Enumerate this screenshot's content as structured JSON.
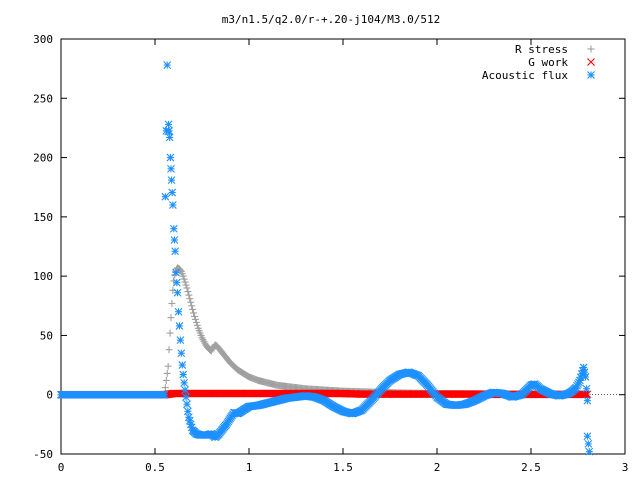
{
  "chart_data": {
    "type": "scatter",
    "title": "m3/n1.5/q2.0/r-+.20-j104/M3.0/512",
    "xlim": [
      0,
      3
    ],
    "ylim": [
      -50,
      300
    ],
    "x_ticks": [
      0,
      0.5,
      1,
      1.5,
      2,
      2.5,
      3
    ],
    "x_tick_labels": [
      "0",
      "0.5",
      "1",
      "1.5",
      "2",
      "2.5",
      "3"
    ],
    "y_ticks": [
      -50,
      0,
      50,
      100,
      150,
      200,
      250,
      300
    ],
    "y_tick_labels": [
      "-50",
      "0",
      "50",
      "100",
      "150",
      "200",
      "250",
      "300"
    ],
    "legend_position": "top-right",
    "grid": false,
    "series": [
      {
        "name": "R stress",
        "marker": "plus",
        "color": "#a0a0a0",
        "points": [
          [
            0.0,
            0
          ],
          [
            0.1,
            0
          ],
          [
            0.2,
            0
          ],
          [
            0.3,
            0
          ],
          [
            0.4,
            0
          ],
          [
            0.5,
            0
          ],
          [
            0.55,
            0
          ],
          [
            0.57,
            24
          ],
          [
            0.575,
            38
          ],
          [
            0.58,
            52
          ],
          [
            0.585,
            65
          ],
          [
            0.59,
            77
          ],
          [
            0.595,
            88
          ],
          [
            0.6,
            96
          ],
          [
            0.605,
            101
          ],
          [
            0.61,
            104
          ],
          [
            0.615,
            106
          ],
          [
            0.62,
            107
          ],
          [
            0.63,
            106
          ],
          [
            0.64,
            104
          ],
          [
            0.65,
            100
          ],
          [
            0.66,
            95
          ],
          [
            0.67,
            90
          ],
          [
            0.68,
            84
          ],
          [
            0.69,
            78
          ],
          [
            0.7,
            72
          ],
          [
            0.71,
            66
          ],
          [
            0.72,
            61
          ],
          [
            0.73,
            56
          ],
          [
            0.74,
            52
          ],
          [
            0.75,
            48
          ],
          [
            0.76,
            45
          ],
          [
            0.77,
            42
          ],
          [
            0.78,
            40
          ],
          [
            0.79,
            38
          ],
          [
            0.8,
            37
          ],
          [
            0.81,
            40
          ],
          [
            0.82,
            42
          ],
          [
            0.83,
            41
          ],
          [
            0.84,
            39
          ],
          [
            0.85,
            37
          ],
          [
            0.86,
            35
          ],
          [
            0.87,
            33
          ],
          [
            0.88,
            31
          ],
          [
            0.89,
            29
          ],
          [
            0.9,
            27
          ],
          [
            0.92,
            24
          ],
          [
            0.94,
            21
          ],
          [
            0.96,
            19
          ],
          [
            0.98,
            17
          ],
          [
            1.0,
            15
          ],
          [
            1.05,
            12
          ],
          [
            1.1,
            10
          ],
          [
            1.15,
            8
          ],
          [
            1.2,
            7
          ],
          [
            1.3,
            5
          ],
          [
            1.4,
            4
          ],
          [
            1.5,
            3
          ],
          [
            1.6,
            2.5
          ],
          [
            1.7,
            2
          ],
          [
            1.8,
            1.5
          ],
          [
            2.0,
            1
          ],
          [
            2.2,
            0.8
          ],
          [
            2.4,
            0.5
          ],
          [
            2.6,
            0.3
          ],
          [
            2.8,
            0.2
          ]
        ]
      },
      {
        "name": "G work",
        "marker": "cross",
        "color": "#ff0000",
        "points": [
          [
            0.0,
            0
          ],
          [
            0.1,
            0
          ],
          [
            0.2,
            0
          ],
          [
            0.3,
            0
          ],
          [
            0.4,
            0
          ],
          [
            0.5,
            0
          ],
          [
            0.55,
            0
          ],
          [
            0.6,
            1
          ],
          [
            0.65,
            1
          ],
          [
            0.7,
            1
          ],
          [
            0.75,
            1
          ],
          [
            0.8,
            1
          ],
          [
            0.9,
            1
          ],
          [
            1.0,
            1
          ],
          [
            1.1,
            1
          ],
          [
            1.2,
            1
          ],
          [
            1.3,
            1
          ],
          [
            1.4,
            1
          ],
          [
            1.5,
            1
          ],
          [
            1.6,
            0.5
          ],
          [
            1.7,
            0.5
          ],
          [
            1.8,
            0.5
          ],
          [
            1.9,
            0.5
          ],
          [
            2.0,
            0.5
          ],
          [
            2.1,
            0.5
          ],
          [
            2.2,
            0.5
          ],
          [
            2.3,
            0.3
          ],
          [
            2.4,
            0.3
          ],
          [
            2.5,
            0.3
          ],
          [
            2.6,
            0.3
          ],
          [
            2.7,
            0.3
          ],
          [
            2.8,
            0.3
          ]
        ]
      },
      {
        "name": "Acoustic flux",
        "marker": "star",
        "color": "#1e90ff",
        "points": [
          [
            0.0,
            0
          ],
          [
            0.1,
            0
          ],
          [
            0.2,
            0
          ],
          [
            0.3,
            0
          ],
          [
            0.4,
            0
          ],
          [
            0.5,
            0
          ],
          [
            0.55,
            0
          ],
          [
            0.555,
            167
          ],
          [
            0.565,
            278
          ],
          [
            0.57,
            222
          ],
          [
            0.572,
            228
          ],
          [
            0.578,
            217
          ],
          [
            0.582,
            200
          ],
          [
            0.588,
            181
          ],
          [
            0.595,
            160
          ],
          [
            0.6,
            140
          ],
          [
            0.607,
            121
          ],
          [
            0.612,
            103
          ],
          [
            0.62,
            86
          ],
          [
            0.625,
            70
          ],
          [
            0.63,
            58
          ],
          [
            0.635,
            46
          ],
          [
            0.64,
            35
          ],
          [
            0.645,
            25
          ],
          [
            0.65,
            17
          ],
          [
            0.655,
            10
          ],
          [
            0.66,
            4
          ],
          [
            0.665,
            -2
          ],
          [
            0.67,
            -8
          ],
          [
            0.675,
            -14
          ],
          [
            0.68,
            -19
          ],
          [
            0.69,
            -25
          ],
          [
            0.7,
            -30
          ],
          [
            0.72,
            -33
          ],
          [
            0.74,
            -34
          ],
          [
            0.76,
            -34
          ],
          [
            0.78,
            -34
          ],
          [
            0.8,
            -33
          ],
          [
            0.82,
            -36
          ],
          [
            0.84,
            -33
          ],
          [
            0.86,
            -29
          ],
          [
            0.88,
            -25
          ],
          [
            0.9,
            -20
          ],
          [
            0.92,
            -15
          ],
          [
            0.94,
            -16
          ],
          [
            0.96,
            -14
          ],
          [
            0.98,
            -12
          ],
          [
            1.0,
            -10
          ],
          [
            1.05,
            -9
          ],
          [
            1.1,
            -7
          ],
          [
            1.15,
            -5
          ],
          [
            1.2,
            -3
          ],
          [
            1.25,
            -2
          ],
          [
            1.3,
            -1
          ],
          [
            1.35,
            -2
          ],
          [
            1.4,
            -5
          ],
          [
            1.45,
            -10
          ],
          [
            1.5,
            -14
          ],
          [
            1.55,
            -16
          ],
          [
            1.6,
            -13
          ],
          [
            1.65,
            -5
          ],
          [
            1.7,
            4
          ],
          [
            1.75,
            12
          ],
          [
            1.8,
            17
          ],
          [
            1.85,
            19
          ],
          [
            1.9,
            16
          ],
          [
            1.95,
            8
          ],
          [
            2.0,
            -2
          ],
          [
            2.05,
            -8
          ],
          [
            2.1,
            -9
          ],
          [
            2.15,
            -8
          ],
          [
            2.2,
            -5
          ],
          [
            2.25,
            -1
          ],
          [
            2.3,
            2
          ],
          [
            2.35,
            1
          ],
          [
            2.4,
            -2
          ],
          [
            2.45,
            0
          ],
          [
            2.5,
            8
          ],
          [
            2.52,
            9
          ],
          [
            2.55,
            5
          ],
          [
            2.6,
            1
          ],
          [
            2.65,
            -1
          ],
          [
            2.7,
            1
          ],
          [
            2.72,
            3
          ],
          [
            2.74,
            6
          ],
          [
            2.76,
            12
          ],
          [
            2.78,
            23
          ],
          [
            2.79,
            15
          ],
          [
            2.8,
            -5
          ],
          [
            2.8,
            -35
          ],
          [
            2.81,
            -48
          ]
        ]
      }
    ]
  }
}
